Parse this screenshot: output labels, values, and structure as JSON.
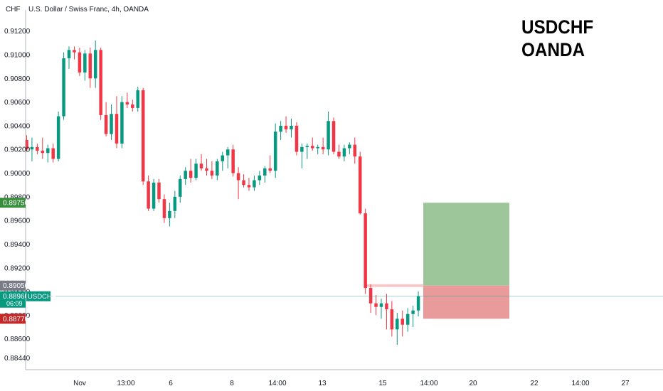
{
  "chart_data": {
    "type": "candlestick",
    "title": "U.S. Dollar / Swiss Franc, 4h, OANDA",
    "symbol": "USDCHF",
    "broker": "OANDA",
    "currency_label": "CHF",
    "ylim": [
      0.8834,
      0.9133
    ],
    "y_ticks": [
      "0.91200",
      "0.91000",
      "0.90800",
      "0.90600",
      "0.90400",
      "0.90200",
      "0.90000",
      "0.89800",
      "0.89600",
      "0.89400",
      "0.89200",
      "0.89000",
      "0.88800",
      "0.88600",
      "0.88440"
    ],
    "x_ticks": [
      "Nov",
      "13:00",
      "6",
      "8",
      "14:00",
      "13",
      "15",
      "14:00",
      "20",
      "22",
      "14:00",
      "27"
    ],
    "candles": [
      [
        0.9028,
        0.9032,
        0.9018,
        0.902
      ],
      [
        0.902,
        0.903,
        0.901,
        0.9022
      ],
      [
        0.9022,
        0.9025,
        0.9016,
        0.9019
      ],
      [
        0.9019,
        0.903,
        0.9012,
        0.9017
      ],
      [
        0.9017,
        0.9024,
        0.9009,
        0.9021
      ],
      [
        0.9021,
        0.9025,
        0.9009,
        0.9012
      ],
      [
        0.9012,
        0.9052,
        0.901,
        0.9048
      ],
      [
        0.9048,
        0.9102,
        0.9045,
        0.9097
      ],
      [
        0.9097,
        0.9107,
        0.9088,
        0.9104
      ],
      [
        0.9104,
        0.9107,
        0.9096,
        0.9102
      ],
      [
        0.9102,
        0.9106,
        0.9082,
        0.9085
      ],
      [
        0.9085,
        0.9104,
        0.9078,
        0.9101
      ],
      [
        0.9101,
        0.9106,
        0.9072,
        0.908
      ],
      [
        0.908,
        0.9112,
        0.9072,
        0.9104
      ],
      [
        0.9104,
        0.9106,
        0.9045,
        0.9049
      ],
      [
        0.9049,
        0.906,
        0.9031,
        0.9033
      ],
      [
        0.9033,
        0.9058,
        0.9028,
        0.905
      ],
      [
        0.905,
        0.9065,
        0.9021,
        0.9025
      ],
      [
        0.9025,
        0.9065,
        0.9021,
        0.906
      ],
      [
        0.906,
        0.9068,
        0.9055,
        0.9058
      ],
      [
        0.9058,
        0.9062,
        0.9052,
        0.9055
      ],
      [
        0.9055,
        0.9073,
        0.9052,
        0.907
      ],
      [
        0.907,
        0.9072,
        0.899,
        0.8993
      ],
      [
        0.8993,
        0.8998,
        0.8968,
        0.897
      ],
      [
        0.897,
        0.8995,
        0.8968,
        0.8992
      ],
      [
        0.8992,
        0.8995,
        0.8975,
        0.8978
      ],
      [
        0.8978,
        0.8982,
        0.8958,
        0.8962
      ],
      [
        0.8962,
        0.8975,
        0.8955,
        0.8968
      ],
      [
        0.8968,
        0.8985,
        0.8962,
        0.898
      ],
      [
        0.898,
        0.8998,
        0.8975,
        0.8995
      ],
      [
        0.8995,
        0.9005,
        0.899,
        0.9002
      ],
      [
        0.9002,
        0.9012,
        0.8992,
        0.8996
      ],
      [
        0.8996,
        0.9012,
        0.8994,
        0.9008
      ],
      [
        0.9008,
        0.9016,
        0.9002,
        0.9004
      ],
      [
        0.9004,
        0.9012,
        0.8998,
        0.9002
      ],
      [
        0.9002,
        0.901,
        0.8995,
        0.8998
      ],
      [
        0.8998,
        0.9012,
        0.8994,
        0.901
      ],
      [
        0.901,
        0.9018,
        0.9002,
        0.9015
      ],
      [
        0.9015,
        0.9022,
        0.9004,
        0.902
      ],
      [
        0.902,
        0.9024,
        0.8997,
        0.9
      ],
      [
        0.9,
        0.9005,
        0.8978,
        0.8994
      ],
      [
        0.8994,
        0.8999,
        0.8988,
        0.899
      ],
      [
        0.899,
        0.8996,
        0.8985,
        0.8988
      ],
      [
        0.8988,
        0.8998,
        0.8985,
        0.8994
      ],
      [
        0.8994,
        0.9002,
        0.899,
        0.8998
      ],
      [
        0.8998,
        0.9006,
        0.8992,
        0.9004
      ],
      [
        0.9004,
        0.9015,
        0.9,
        0.9002
      ],
      [
        0.9002,
        0.9042,
        0.8996,
        0.9035
      ],
      [
        0.9035,
        0.9044,
        0.9028,
        0.904
      ],
      [
        0.904,
        0.9048,
        0.9034,
        0.9037
      ],
      [
        0.9037,
        0.9046,
        0.903,
        0.904
      ],
      [
        0.904,
        0.9043,
        0.9015,
        0.9018
      ],
      [
        0.9018,
        0.9025,
        0.9004,
        0.9022
      ],
      [
        0.9022,
        0.9025,
        0.9012,
        0.9023
      ],
      [
        0.9023,
        0.903,
        0.9019,
        0.9021
      ],
      [
        0.9021,
        0.9024,
        0.9016,
        0.9022
      ],
      [
        0.9022,
        0.903,
        0.9016,
        0.902
      ],
      [
        0.902,
        0.9052,
        0.9015,
        0.9044
      ],
      [
        0.9044,
        0.9047,
        0.9016,
        0.9018
      ],
      [
        0.9018,
        0.9024,
        0.9012,
        0.9014
      ],
      [
        0.9014,
        0.9024,
        0.901,
        0.9021
      ],
      [
        0.9021,
        0.9026,
        0.9016,
        0.9024
      ],
      [
        0.9024,
        0.903,
        0.9008,
        0.9014
      ],
      [
        0.9014,
        0.9018,
        0.8965,
        0.8966
      ],
      [
        0.8966,
        0.897,
        0.8898,
        0.8903
      ],
      [
        0.8903,
        0.8906,
        0.8882,
        0.889
      ],
      [
        0.889,
        0.8897,
        0.888,
        0.8887
      ],
      [
        0.8887,
        0.8894,
        0.8877,
        0.889
      ],
      [
        0.889,
        0.8898,
        0.8868,
        0.8885
      ],
      [
        0.8885,
        0.8892,
        0.8862,
        0.8868
      ],
      [
        0.8868,
        0.8882,
        0.8855,
        0.8877
      ],
      [
        0.8877,
        0.8884,
        0.8862,
        0.8872
      ],
      [
        0.8872,
        0.8886,
        0.8866,
        0.8881
      ],
      [
        0.8881,
        0.8888,
        0.887,
        0.8884
      ],
      [
        0.8884,
        0.89,
        0.8879,
        0.8896
      ]
    ],
    "current_price": {
      "label": "0.88960",
      "symbol": "USDCHF",
      "countdown": "06:09",
      "value": 0.8896
    },
    "take_profit": {
      "label": "0.89750",
      "value": 0.8975
    },
    "entry": {
      "label": "0.89050",
      "value": 0.8905
    },
    "stop_loss": {
      "label": "0.88770",
      "value": 0.8877
    },
    "colors": {
      "up": "#089981",
      "down": "#f23645",
      "profit": "#9dc79b",
      "loss": "#e99a9a",
      "tp_label": "#388e3c",
      "sl_label": "#c62828",
      "entry_label": "#787b86",
      "price_label": "#089981"
    }
  }
}
